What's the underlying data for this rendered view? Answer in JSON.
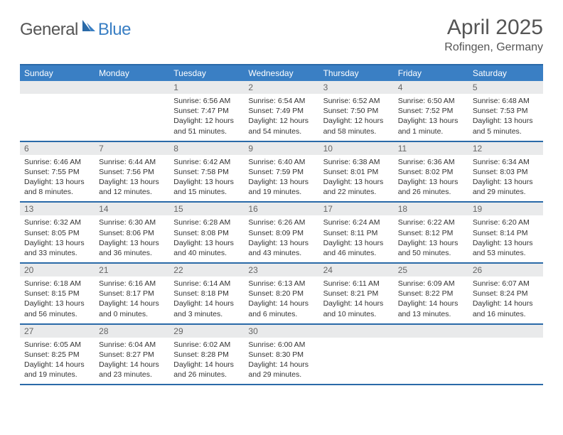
{
  "logo": {
    "text1": "General",
    "text2": "Blue"
  },
  "title": "April 2025",
  "location": "Rofingen, Germany",
  "colors": {
    "header_bar": "#3a7fc4",
    "header_text": "#ffffff",
    "rule": "#2a6aa8",
    "daynum_bg": "#e9eaeb",
    "daynum_text": "#666666",
    "body_text": "#333333",
    "background": "#ffffff"
  },
  "day_names": [
    "Sunday",
    "Monday",
    "Tuesday",
    "Wednesday",
    "Thursday",
    "Friday",
    "Saturday"
  ],
  "weeks": [
    [
      {
        "n": "",
        "sunrise": "",
        "sunset": "",
        "daylight": ""
      },
      {
        "n": "",
        "sunrise": "",
        "sunset": "",
        "daylight": ""
      },
      {
        "n": "1",
        "sunrise": "Sunrise: 6:56 AM",
        "sunset": "Sunset: 7:47 PM",
        "daylight": "Daylight: 12 hours and 51 minutes."
      },
      {
        "n": "2",
        "sunrise": "Sunrise: 6:54 AM",
        "sunset": "Sunset: 7:49 PM",
        "daylight": "Daylight: 12 hours and 54 minutes."
      },
      {
        "n": "3",
        "sunrise": "Sunrise: 6:52 AM",
        "sunset": "Sunset: 7:50 PM",
        "daylight": "Daylight: 12 hours and 58 minutes."
      },
      {
        "n": "4",
        "sunrise": "Sunrise: 6:50 AM",
        "sunset": "Sunset: 7:52 PM",
        "daylight": "Daylight: 13 hours and 1 minute."
      },
      {
        "n": "5",
        "sunrise": "Sunrise: 6:48 AM",
        "sunset": "Sunset: 7:53 PM",
        "daylight": "Daylight: 13 hours and 5 minutes."
      }
    ],
    [
      {
        "n": "6",
        "sunrise": "Sunrise: 6:46 AM",
        "sunset": "Sunset: 7:55 PM",
        "daylight": "Daylight: 13 hours and 8 minutes."
      },
      {
        "n": "7",
        "sunrise": "Sunrise: 6:44 AM",
        "sunset": "Sunset: 7:56 PM",
        "daylight": "Daylight: 13 hours and 12 minutes."
      },
      {
        "n": "8",
        "sunrise": "Sunrise: 6:42 AM",
        "sunset": "Sunset: 7:58 PM",
        "daylight": "Daylight: 13 hours and 15 minutes."
      },
      {
        "n": "9",
        "sunrise": "Sunrise: 6:40 AM",
        "sunset": "Sunset: 7:59 PM",
        "daylight": "Daylight: 13 hours and 19 minutes."
      },
      {
        "n": "10",
        "sunrise": "Sunrise: 6:38 AM",
        "sunset": "Sunset: 8:01 PM",
        "daylight": "Daylight: 13 hours and 22 minutes."
      },
      {
        "n": "11",
        "sunrise": "Sunrise: 6:36 AM",
        "sunset": "Sunset: 8:02 PM",
        "daylight": "Daylight: 13 hours and 26 minutes."
      },
      {
        "n": "12",
        "sunrise": "Sunrise: 6:34 AM",
        "sunset": "Sunset: 8:03 PM",
        "daylight": "Daylight: 13 hours and 29 minutes."
      }
    ],
    [
      {
        "n": "13",
        "sunrise": "Sunrise: 6:32 AM",
        "sunset": "Sunset: 8:05 PM",
        "daylight": "Daylight: 13 hours and 33 minutes."
      },
      {
        "n": "14",
        "sunrise": "Sunrise: 6:30 AM",
        "sunset": "Sunset: 8:06 PM",
        "daylight": "Daylight: 13 hours and 36 minutes."
      },
      {
        "n": "15",
        "sunrise": "Sunrise: 6:28 AM",
        "sunset": "Sunset: 8:08 PM",
        "daylight": "Daylight: 13 hours and 40 minutes."
      },
      {
        "n": "16",
        "sunrise": "Sunrise: 6:26 AM",
        "sunset": "Sunset: 8:09 PM",
        "daylight": "Daylight: 13 hours and 43 minutes."
      },
      {
        "n": "17",
        "sunrise": "Sunrise: 6:24 AM",
        "sunset": "Sunset: 8:11 PM",
        "daylight": "Daylight: 13 hours and 46 minutes."
      },
      {
        "n": "18",
        "sunrise": "Sunrise: 6:22 AM",
        "sunset": "Sunset: 8:12 PM",
        "daylight": "Daylight: 13 hours and 50 minutes."
      },
      {
        "n": "19",
        "sunrise": "Sunrise: 6:20 AM",
        "sunset": "Sunset: 8:14 PM",
        "daylight": "Daylight: 13 hours and 53 minutes."
      }
    ],
    [
      {
        "n": "20",
        "sunrise": "Sunrise: 6:18 AM",
        "sunset": "Sunset: 8:15 PM",
        "daylight": "Daylight: 13 hours and 56 minutes."
      },
      {
        "n": "21",
        "sunrise": "Sunrise: 6:16 AM",
        "sunset": "Sunset: 8:17 PM",
        "daylight": "Daylight: 14 hours and 0 minutes."
      },
      {
        "n": "22",
        "sunrise": "Sunrise: 6:14 AM",
        "sunset": "Sunset: 8:18 PM",
        "daylight": "Daylight: 14 hours and 3 minutes."
      },
      {
        "n": "23",
        "sunrise": "Sunrise: 6:13 AM",
        "sunset": "Sunset: 8:20 PM",
        "daylight": "Daylight: 14 hours and 6 minutes."
      },
      {
        "n": "24",
        "sunrise": "Sunrise: 6:11 AM",
        "sunset": "Sunset: 8:21 PM",
        "daylight": "Daylight: 14 hours and 10 minutes."
      },
      {
        "n": "25",
        "sunrise": "Sunrise: 6:09 AM",
        "sunset": "Sunset: 8:22 PM",
        "daylight": "Daylight: 14 hours and 13 minutes."
      },
      {
        "n": "26",
        "sunrise": "Sunrise: 6:07 AM",
        "sunset": "Sunset: 8:24 PM",
        "daylight": "Daylight: 14 hours and 16 minutes."
      }
    ],
    [
      {
        "n": "27",
        "sunrise": "Sunrise: 6:05 AM",
        "sunset": "Sunset: 8:25 PM",
        "daylight": "Daylight: 14 hours and 19 minutes."
      },
      {
        "n": "28",
        "sunrise": "Sunrise: 6:04 AM",
        "sunset": "Sunset: 8:27 PM",
        "daylight": "Daylight: 14 hours and 23 minutes."
      },
      {
        "n": "29",
        "sunrise": "Sunrise: 6:02 AM",
        "sunset": "Sunset: 8:28 PM",
        "daylight": "Daylight: 14 hours and 26 minutes."
      },
      {
        "n": "30",
        "sunrise": "Sunrise: 6:00 AM",
        "sunset": "Sunset: 8:30 PM",
        "daylight": "Daylight: 14 hours and 29 minutes."
      },
      {
        "n": "",
        "sunrise": "",
        "sunset": "",
        "daylight": ""
      },
      {
        "n": "",
        "sunrise": "",
        "sunset": "",
        "daylight": ""
      },
      {
        "n": "",
        "sunrise": "",
        "sunset": "",
        "daylight": ""
      }
    ]
  ]
}
